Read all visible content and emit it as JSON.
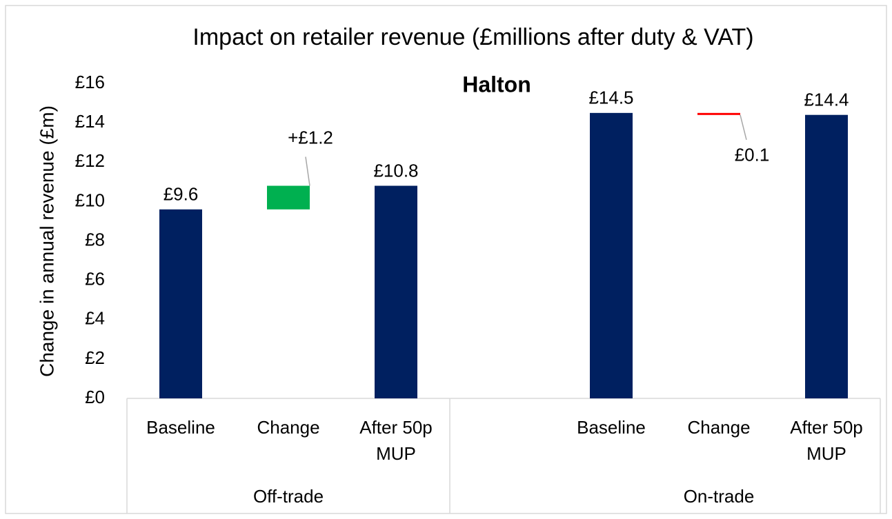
{
  "chart_data": {
    "type": "waterfall",
    "title": "Impact on retailer revenue (£millions after duty & VAT)",
    "subtitle": "Halton",
    "y_label": "Change in annual revenue (£m)",
    "groups": [
      {
        "name": "Off-trade",
        "categories": [
          "Baseline",
          "Change",
          "After 50p MUP"
        ],
        "measures": [
          "absolute",
          "relative",
          "total"
        ],
        "values": [
          9.6,
          1.2,
          10.8
        ],
        "value_labels": [
          "£9.6",
          "+£1.2",
          "£10.8"
        ]
      },
      {
        "name": "On-trade",
        "categories": [
          "Baseline",
          "Change",
          "After 50p MUP"
        ],
        "measures": [
          "absolute",
          "relative",
          "total"
        ],
        "values": [
          14.5,
          -0.1,
          14.4
        ],
        "value_labels": [
          "£14.5",
          "£0.1",
          "£14.4"
        ]
      }
    ],
    "colors": {
      "total": "#002060",
      "increase": "#00b050",
      "decrease": "#ff0000"
    },
    "ylim": [
      0,
      16
    ],
    "yticks": [
      {
        "value": 0,
        "label": "£0"
      },
      {
        "value": 2,
        "label": "£2"
      },
      {
        "value": 4,
        "label": "£4"
      },
      {
        "value": 6,
        "label": "£6"
      },
      {
        "value": 8,
        "label": "£8"
      },
      {
        "value": 10,
        "label": "£10"
      },
      {
        "value": 12,
        "label": "£12"
      },
      {
        "value": 14,
        "label": "£14"
      },
      {
        "value": 16,
        "label": "£16"
      }
    ],
    "grid": false
  }
}
